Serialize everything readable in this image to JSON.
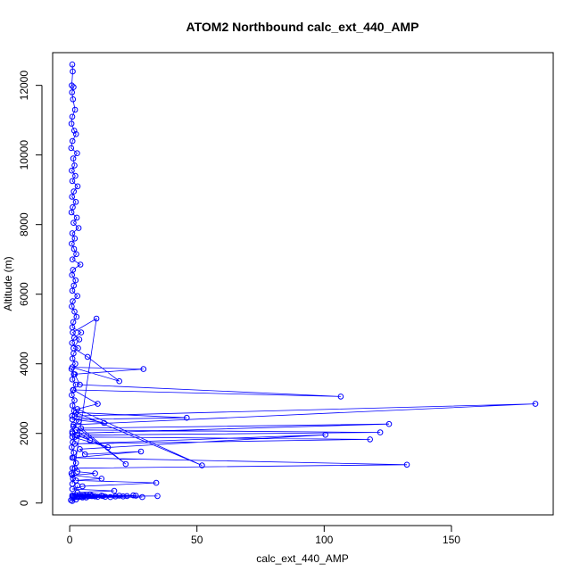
{
  "chart_data": {
    "type": "line",
    "title": "ATOM2 Northbound calc_ext_440_AMP",
    "xlabel": "calc_ext_440_AMP",
    "ylabel": "Altitude (m)",
    "xlim": [
      -6.7,
      190
    ],
    "ylim": [
      -340,
      12940
    ],
    "x_ticks": [
      0,
      50,
      100,
      150
    ],
    "y_ticks": [
      0,
      2000,
      4000,
      6000,
      8000,
      10000,
      12000
    ],
    "marker": "open-circle",
    "line_color": "#0000ff",
    "grid": false,
    "series": [
      {
        "x": [
          1.0,
          1.2,
          0.8,
          1.5,
          0.9,
          1.3,
          2.1,
          1.0,
          0.7,
          1.8,
          2.5,
          1.1,
          0.6,
          2.9,
          1.4,
          1.9,
          0.8,
          2.2,
          1.0,
          3.1,
          1.6,
          0.9,
          2.4,
          1.2,
          0.7,
          2.8,
          1.5,
          3.5,
          1.0,
          2.0,
          0.8,
          1.7,
          2.6,
          1.1,
          4.2,
          1.3,
          0.9,
          2.3,
          1.6,
          1.0,
          3.0,
          1.2,
          0.8,
          1.9,
          2.7,
          1.4,
          1.0,
          4.5,
          1.8,
          0.9,
          3.3,
          1.5,
          1.1,
          2.2,
          0.7,
          1.6,
          1.0,
          2.4,
          1.3,
          0.8,
          1.9,
          1.1,
          1.7,
          0.9,
          3.6,
          1.4,
          1.0,
          2.1,
          1.2,
          0.8,
          1.6,
          1.0,
          2.5,
          1.1,
          0.7,
          1.3,
          1.0,
          10.5,
          1.2,
          3.8,
          1.5,
          7.0,
          19.5,
          1.0,
          29.0,
          2.0,
          4.0,
          106.5,
          1.5,
          11.0,
          3.0,
          52.0,
          2.5,
          46.0,
          1.0,
          13.5,
          2.0,
          183.0,
          1.5,
          22.0,
          4.5,
          125.5,
          1.0,
          8.0,
          2.5,
          122.0,
          3.0,
          15.0,
          1.0,
          118.0,
          2.0,
          100.5,
          4.0,
          6.0,
          28.0,
          1.5,
          132.5,
          2.0,
          3.0,
          10.0,
          1.0,
          12.5,
          2.5,
          34.0,
          5.0,
          1.0,
          17.5,
          3.0,
          8.0,
          1.0,
          22.5,
          4.5,
          2.0,
          28.5,
          6.5,
          1.5,
          11.0,
          3.0,
          34.5,
          8.5,
          2.0,
          14.0,
          5.5,
          25.0,
          2.5,
          18.0,
          9.0,
          1.0,
          3.5,
          12.5,
          6.0,
          21.0,
          8.5,
          3.0,
          16.0,
          5.0,
          1.5,
          10.0,
          26.0,
          4.0,
          13.0,
          2.0,
          7.5,
          19.5,
          2.5,
          0.5,
          1.0,
          3.0
        ],
        "y": [
          12600,
          12400,
          12000,
          11950,
          11800,
          11600,
          11300,
          11100,
          10900,
          10700,
          10600,
          10400,
          10200,
          10050,
          9900,
          9700,
          9550,
          9400,
          9250,
          9100,
          8950,
          8800,
          8650,
          8500,
          8350,
          8200,
          8050,
          7900,
          7750,
          7600,
          7450,
          7300,
          7150,
          7000,
          6850,
          6700,
          6550,
          6400,
          6250,
          6100,
          5950,
          5800,
          5650,
          5500,
          5350,
          5200,
          5050,
          4900,
          4750,
          4600,
          4450,
          4300,
          4150,
          4000,
          3850,
          3700,
          3550,
          3400,
          3250,
          3100,
          2950,
          2800,
          2650,
          2500,
          2350,
          2200,
          2050,
          1900,
          1750,
          1600,
          1450,
          1300,
          1150,
          1000,
          850,
          700,
          550,
          5300,
          4900,
          4700,
          4450,
          4200,
          3500,
          3900,
          3850,
          3700,
          3400,
          3060,
          3250,
          2850,
          2700,
          1080,
          2600,
          2450,
          2400,
          2300,
          2500,
          2850,
          2250,
          1120,
          2150,
          2270,
          2000,
          1800,
          2100,
          2030,
          1950,
          1600,
          1900,
          1830,
          1700,
          1960,
          1550,
          1400,
          1480,
          1300,
          1100,
          1000,
          900,
          850,
          800,
          700,
          650,
          580,
          480,
          400,
          350,
          300,
          250,
          220,
          200,
          190,
          180,
          170,
          160,
          200,
          180,
          190,
          200,
          210,
          190,
          180,
          200,
          220,
          230,
          190,
          200,
          180,
          170,
          210,
          220,
          190,
          200,
          180,
          170,
          160,
          200,
          190,
          210,
          180,
          200,
          190,
          200,
          210,
          100,
          80,
          60,
          500
        ]
      }
    ]
  }
}
